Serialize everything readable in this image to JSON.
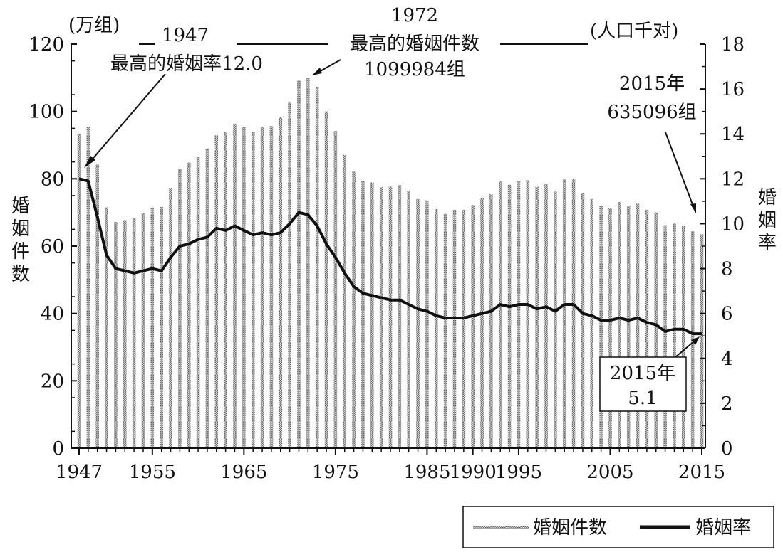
{
  "chart_data": {
    "type": "bar",
    "x": [
      1947,
      1948,
      1949,
      1950,
      1951,
      1952,
      1953,
      1954,
      1955,
      1956,
      1957,
      1958,
      1959,
      1960,
      1961,
      1962,
      1963,
      1964,
      1965,
      1966,
      1967,
      1968,
      1969,
      1970,
      1971,
      1972,
      1973,
      1974,
      1975,
      1976,
      1977,
      1978,
      1979,
      1980,
      1981,
      1982,
      1983,
      1984,
      1985,
      1986,
      1987,
      1988,
      1989,
      1990,
      1991,
      1992,
      1993,
      1994,
      1995,
      1996,
      1997,
      1998,
      1999,
      2000,
      2001,
      2002,
      2003,
      2004,
      2005,
      2006,
      2007,
      2008,
      2009,
      2010,
      2011,
      2012,
      2013,
      2014,
      2015
    ],
    "x_ticks": [
      "1947",
      "1955",
      "1965",
      "1975",
      "1985",
      "1990",
      "1995",
      "2005",
      "2015"
    ],
    "series": [
      {
        "name": "婚姻件数",
        "kind": "bar",
        "axis": "left",
        "values": [
          93.4,
          95.3,
          84.2,
          71.5,
          67.2,
          67.7,
          68.3,
          69.7,
          71.5,
          71.6,
          77.3,
          83.0,
          84.8,
          86.6,
          89.0,
          92.9,
          93.9,
          96.3,
          95.5,
          94.0,
          95.3,
          95.6,
          98.4,
          102.9,
          109.2,
          110.0,
          107.2,
          100.0,
          94.2,
          87.1,
          82.1,
          79.3,
          78.9,
          77.5,
          77.7,
          78.1,
          76.3,
          74.0,
          73.6,
          71.0,
          69.6,
          70.8,
          70.8,
          72.2,
          74.2,
          75.4,
          79.2,
          78.2,
          79.2,
          79.6,
          77.6,
          78.5,
          76.2,
          79.8,
          80.0,
          75.7,
          74.0,
          72.0,
          71.4,
          73.1,
          72.0,
          72.6,
          70.8,
          70.0,
          66.2,
          66.9,
          66.1,
          64.4,
          63.5
        ]
      },
      {
        "name": "婚姻率",
        "kind": "line",
        "axis": "right",
        "values": [
          12.0,
          11.9,
          10.3,
          8.6,
          8.0,
          7.9,
          7.8,
          7.9,
          8.0,
          7.9,
          8.5,
          9.0,
          9.1,
          9.3,
          9.4,
          9.8,
          9.7,
          9.9,
          9.7,
          9.5,
          9.6,
          9.5,
          9.6,
          10.0,
          10.5,
          10.4,
          9.9,
          9.1,
          8.5,
          7.8,
          7.2,
          6.9,
          6.8,
          6.7,
          6.6,
          6.6,
          6.4,
          6.2,
          6.1,
          5.9,
          5.8,
          5.8,
          5.8,
          5.9,
          6.0,
          6.1,
          6.4,
          6.3,
          6.4,
          6.4,
          6.2,
          6.3,
          6.1,
          6.4,
          6.4,
          6.0,
          5.9,
          5.7,
          5.7,
          5.8,
          5.7,
          5.8,
          5.6,
          5.5,
          5.2,
          5.3,
          5.3,
          5.1,
          5.1
        ]
      }
    ],
    "y_left": {
      "unit": "(万组)",
      "label": "婚姻件数",
      "ylim": [
        0,
        120
      ],
      "ticks": [
        0,
        20,
        40,
        60,
        80,
        100,
        120
      ]
    },
    "y_right": {
      "unit": "(人口千对)",
      "label": "婚姻率",
      "ylim": [
        0,
        18
      ],
      "ticks": [
        0,
        2,
        4,
        6,
        8,
        10,
        12,
        14,
        16,
        18
      ]
    },
    "annotations": {
      "peak_rate_year": "1947",
      "peak_rate_text": "最高的婚姻率12.0",
      "peak_count_year": "1972",
      "peak_count_text": "最高的婚姻件数",
      "peak_count_value": "1099984组",
      "latest_count_year": "2015年",
      "latest_count_value": "635096组",
      "latest_rate_year": "2015年",
      "latest_rate_value": "5.1"
    },
    "legend": {
      "placement": "bottom-right",
      "bar_label": "婚姻件数",
      "line_label": "婚姻率"
    }
  }
}
